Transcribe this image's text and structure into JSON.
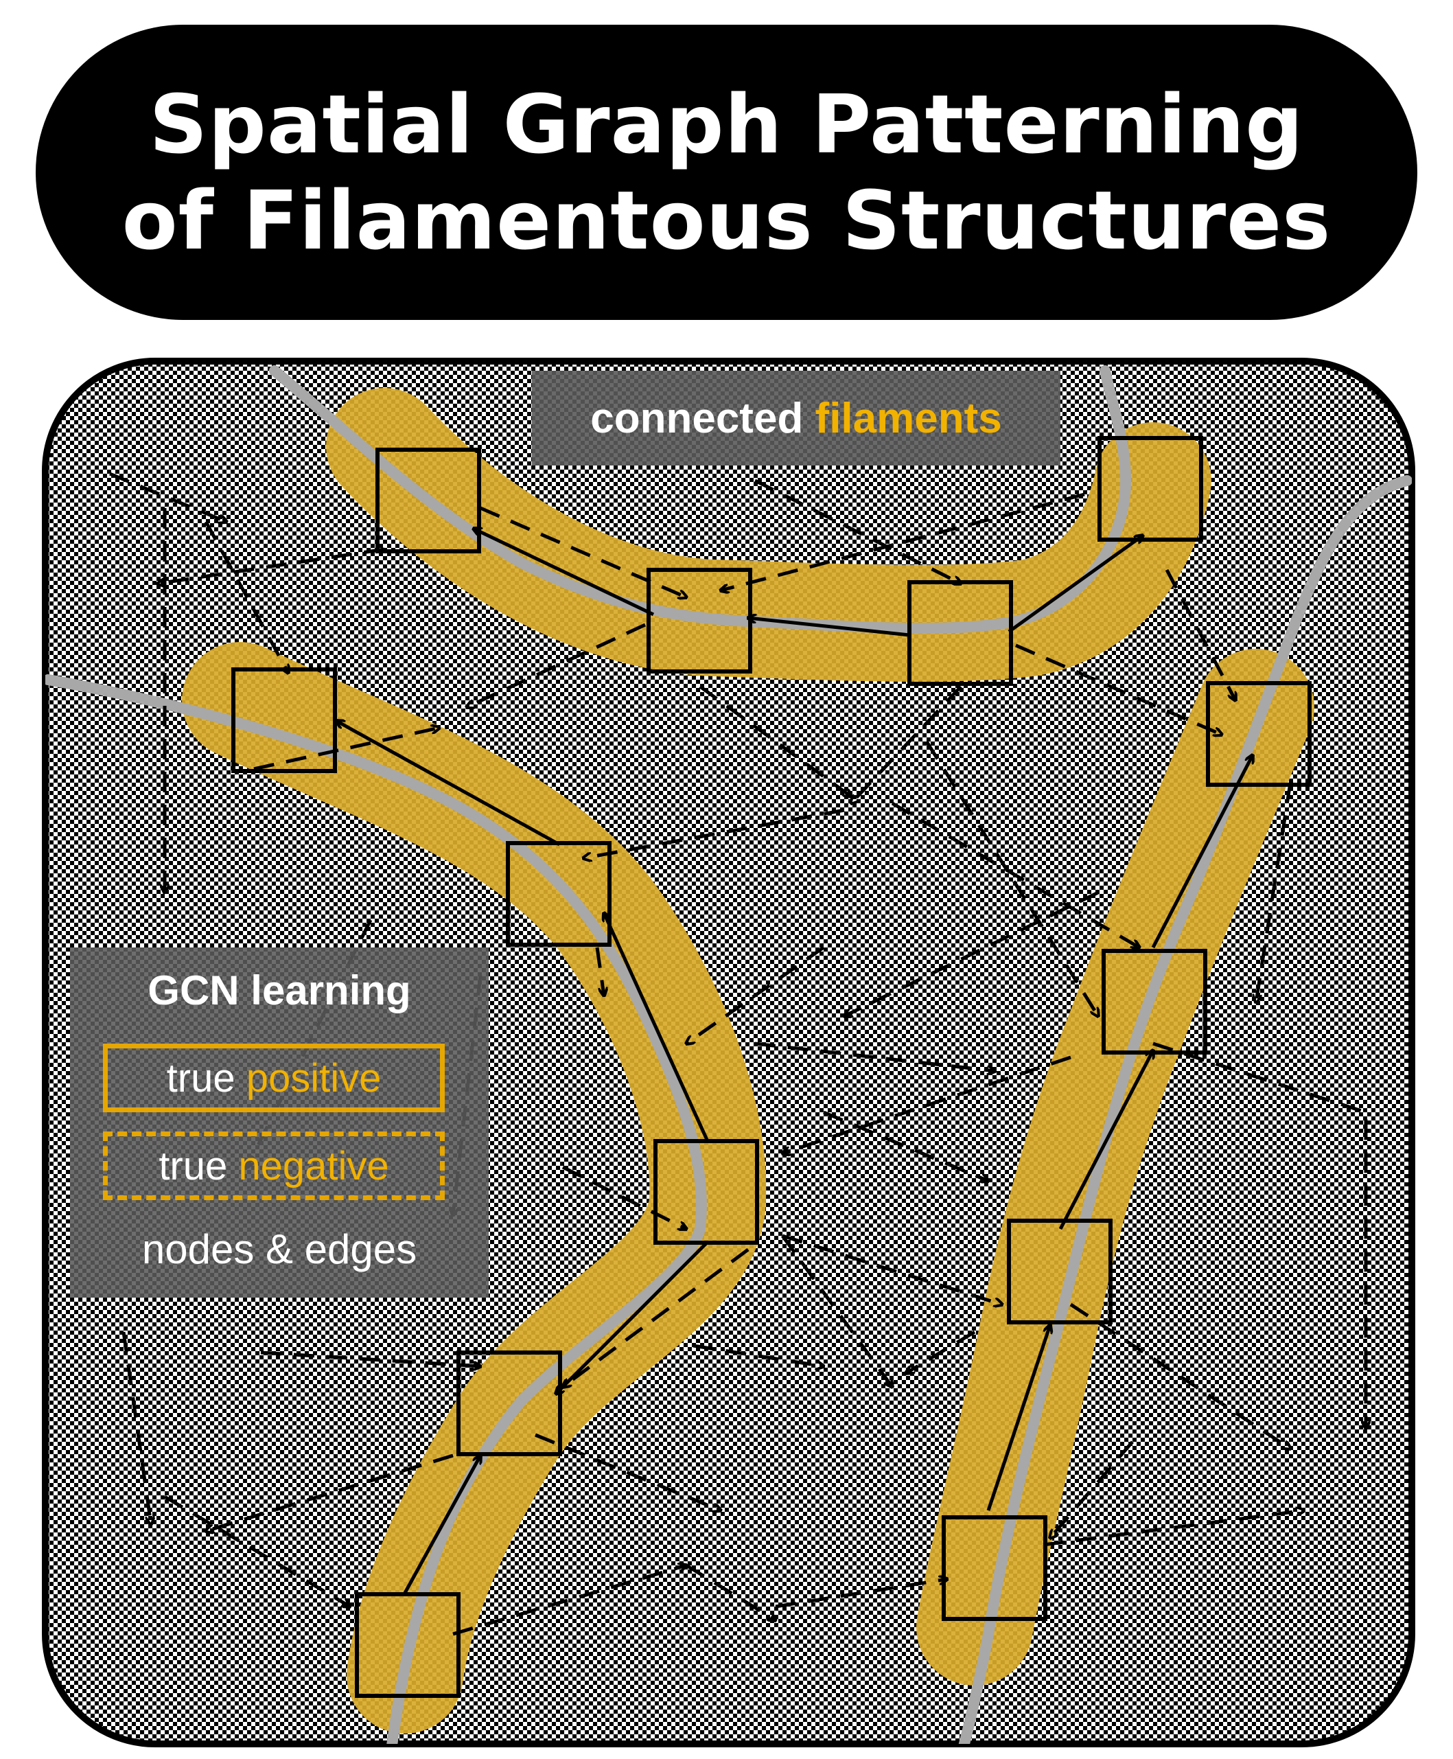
{
  "title": {
    "line1": "Spatial Graph Patterning",
    "line2": "of Filamentous Structures"
  },
  "label_top": {
    "prefix": "connected ",
    "highlight": "filaments"
  },
  "legend": {
    "title": "GCN learning",
    "positive_prefix": "true ",
    "positive_highlight": "positive",
    "negative_prefix": "true ",
    "negative_highlight": "negative",
    "footer": "nodes & edges"
  },
  "colors": {
    "highlight": "#f2b200",
    "filament_band": "#d9aa2a",
    "filament_line": "#a8a8a8",
    "background": "#ffffff",
    "frame": "#000000"
  }
}
